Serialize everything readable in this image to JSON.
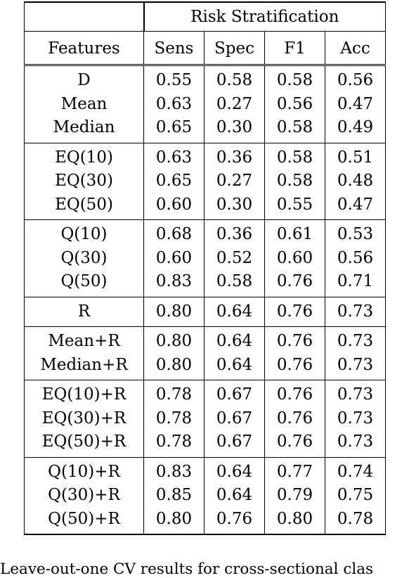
{
  "table": {
    "group_header": "Risk Stratification",
    "columns": [
      "Features",
      "Sens",
      "Spec",
      "F1",
      "Acc"
    ],
    "groups": [
      [
        [
          "D",
          "0.55",
          "0.58",
          "0.58",
          "0.56"
        ],
        [
          "Mean",
          "0.63",
          "0.27",
          "0.56",
          "0.47"
        ],
        [
          "Median",
          "0.65",
          "0.30",
          "0.58",
          "0.49"
        ]
      ],
      [
        [
          "EQ(10)",
          "0.63",
          "0.36",
          "0.58",
          "0.51"
        ],
        [
          "EQ(30)",
          "0.65",
          "0.27",
          "0.58",
          "0.48"
        ],
        [
          "EQ(50)",
          "0.60",
          "0.30",
          "0.55",
          "0.47"
        ]
      ],
      [
        [
          "Q(10)",
          "0.68",
          "0.36",
          "0.61",
          "0.53"
        ],
        [
          "Q(30)",
          "0.60",
          "0.52",
          "0.60",
          "0.56"
        ],
        [
          "Q(50)",
          "0.83",
          "0.58",
          "0.76",
          "0.71"
        ]
      ],
      [
        [
          "R",
          "0.80",
          "0.64",
          "0.76",
          "0.73"
        ]
      ],
      [
        [
          "Mean+R",
          "0.80",
          "0.64",
          "0.76",
          "0.73"
        ],
        [
          "Median+R",
          "0.80",
          "0.64",
          "0.76",
          "0.73"
        ]
      ],
      [
        [
          "EQ(10)+R",
          "0.78",
          "0.67",
          "0.76",
          "0.73"
        ],
        [
          "EQ(30)+R",
          "0.78",
          "0.67",
          "0.76",
          "0.73"
        ],
        [
          "EQ(50)+R",
          "0.78",
          "0.67",
          "0.76",
          "0.73"
        ]
      ],
      [
        [
          "Q(10)+R",
          "0.83",
          "0.64",
          "0.77",
          "0.74"
        ],
        [
          "Q(30)+R",
          "0.85",
          "0.64",
          "0.79",
          "0.75"
        ],
        [
          "Q(50)+R",
          "0.80",
          "0.76",
          "0.80",
          "0.78"
        ]
      ]
    ]
  },
  "caption": "Leave-out-one CV results for cross-sectional clas"
}
